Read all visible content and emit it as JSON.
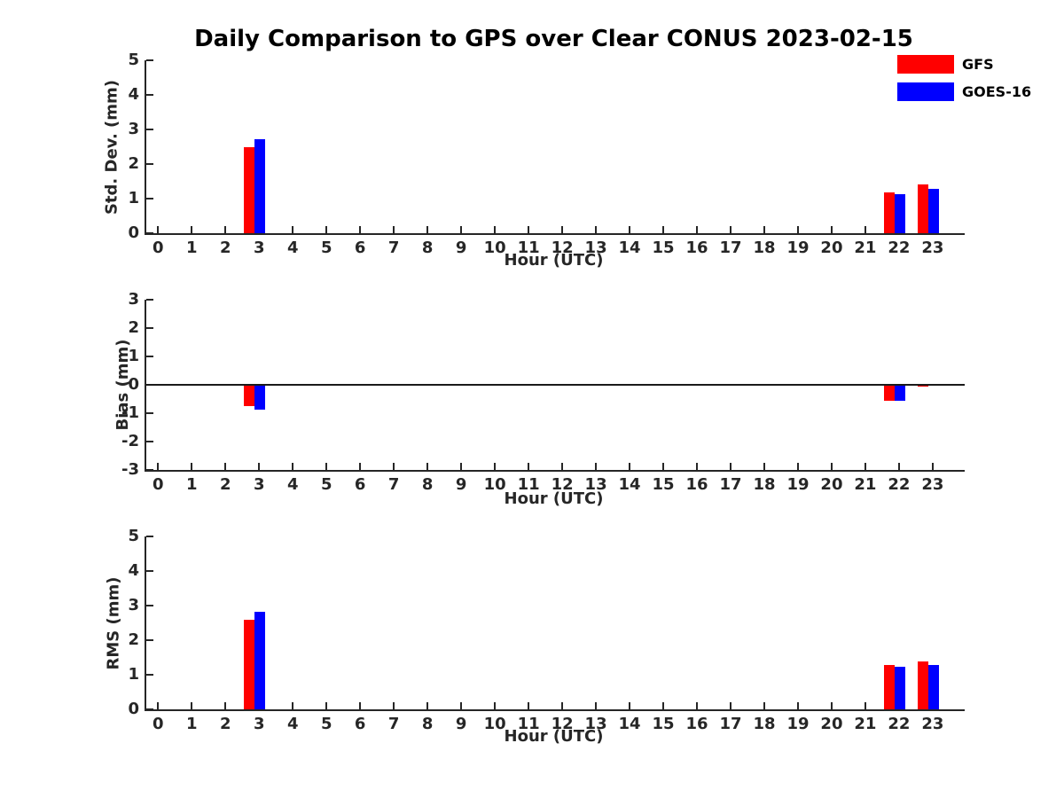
{
  "chart_data": {
    "type": "bar",
    "title": "Daily Comparison to GPS over Clear CONUS 2023-02-15",
    "xlabel": "Hour (UTC)",
    "x_categories": [
      "0",
      "1",
      "2",
      "3",
      "4",
      "5",
      "6",
      "7",
      "8",
      "9",
      "10",
      "11",
      "12",
      "13",
      "14",
      "15",
      "16",
      "17",
      "18",
      "19",
      "20",
      "21",
      "22",
      "23"
    ],
    "x_range": [
      -0.35,
      23.95
    ],
    "grid": false,
    "legend_position": "top-right",
    "series": [
      {
        "name": "GFS",
        "color": "#ff0000"
      },
      {
        "name": "GOES-16",
        "color": "#0000ff"
      }
    ],
    "panels": [
      {
        "ylabel": "Std. Dev. (mm)",
        "ylim": [
          0,
          5
        ],
        "yticks": [
          "0",
          "1",
          "2",
          "3",
          "4",
          "5"
        ],
        "zero_line": false,
        "bars": [
          {
            "hour": 3,
            "values": [
              2.5,
              2.73
            ]
          },
          {
            "hour": 22,
            "values": [
              1.17,
              1.13
            ]
          },
          {
            "hour": 23,
            "values": [
              1.4,
              1.29
            ]
          }
        ]
      },
      {
        "ylabel": "Bias (mm)",
        "ylim": [
          -3,
          3
        ],
        "yticks": [
          "-3",
          "-2",
          "-1",
          "0",
          "1",
          "2",
          "3"
        ],
        "zero_line": true,
        "bars": [
          {
            "hour": 3,
            "values": [
              -0.76,
              -0.88
            ]
          },
          {
            "hour": 22,
            "values": [
              -0.57,
              -0.55
            ]
          },
          {
            "hour": 23,
            "values": [
              -0.05,
              -0.03
            ]
          }
        ]
      },
      {
        "ylabel": "RMS (mm)",
        "ylim": [
          0,
          5
        ],
        "yticks": [
          "0",
          "1",
          "2",
          "3",
          "4",
          "5"
        ],
        "zero_line": false,
        "bars": [
          {
            "hour": 3,
            "values": [
              2.6,
              2.83
            ]
          },
          {
            "hour": 22,
            "values": [
              1.27,
              1.23
            ]
          },
          {
            "hour": 23,
            "values": [
              1.39,
              1.29
            ]
          }
        ]
      }
    ]
  }
}
